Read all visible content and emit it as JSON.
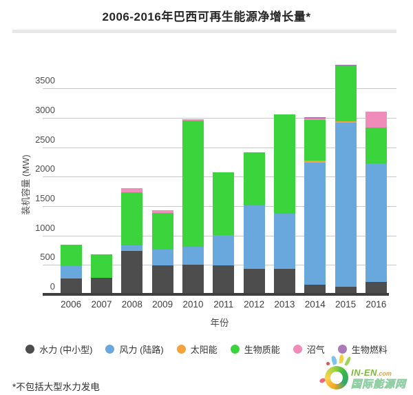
{
  "title": "2006-2016年巴西可再生能源净增长量*",
  "footnote": "*不包括大型水力发电",
  "chart_data": {
    "type": "bar",
    "stacked": true,
    "title": "2006-2016年巴西可再生能源净增长量*",
    "xlabel": "年份",
    "ylabel": "装机容量 (MW)",
    "ylim": [
      0,
      3900
    ],
    "yticks": [
      0,
      500,
      1000,
      1500,
      2000,
      2500,
      3000,
      3500
    ],
    "grid": true,
    "legend_position": "bottom",
    "categories": [
      "2006",
      "2007",
      "2008",
      "2009",
      "2010",
      "2011",
      "2012",
      "2013",
      "2014",
      "2015",
      "2016"
    ],
    "series": [
      {
        "name": "水力 (中小型)",
        "color": "#4d4d4d",
        "values": [
          245,
          260,
          715,
          470,
          475,
          470,
          405,
          415,
          140,
          100,
          190
        ]
      },
      {
        "name": "风力 (陆路)",
        "color": "#69a8dc",
        "values": [
          210,
          0,
          90,
          270,
          310,
          515,
          1085,
          935,
          2080,
          2790,
          2010
        ]
      },
      {
        "name": "太阳能",
        "color": "#f5a23c",
        "values": [
          0,
          0,
          0,
          0,
          0,
          0,
          0,
          0,
          25,
          25,
          0
        ]
      },
      {
        "name": "生物质能",
        "color": "#3cd43c",
        "values": [
          370,
          400,
          905,
          625,
          2140,
          1065,
          900,
          1680,
          700,
          945,
          610
        ]
      },
      {
        "name": "沼气",
        "color": "#f08cba",
        "values": [
          0,
          0,
          70,
          45,
          30,
          0,
          0,
          0,
          20,
          0,
          270
        ]
      },
      {
        "name": "生物燃料",
        "color": "#aa7ab8",
        "values": [
          0,
          0,
          0,
          0,
          0,
          0,
          0,
          0,
          25,
          25,
          0
        ]
      }
    ]
  },
  "logo": {
    "brand_main": "IN-EN",
    "brand_suffix": ".com",
    "site_name": "国际能源网"
  }
}
